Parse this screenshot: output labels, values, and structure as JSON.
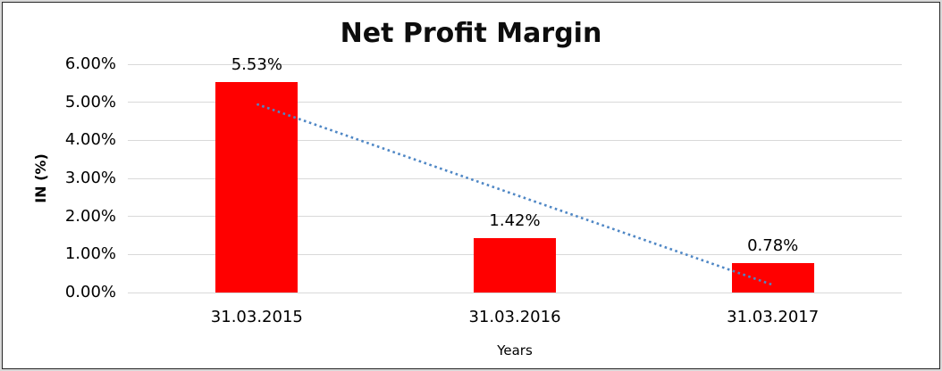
{
  "chart_data": {
    "type": "bar",
    "title": "Net Profit Margin",
    "xlabel": "Years",
    "ylabel": "IN (%)",
    "categories": [
      "31.03.2015",
      "31.03.2016",
      "31.03.2017"
    ],
    "values": [
      5.53,
      1.42,
      0.78
    ],
    "data_labels": [
      "5.53%",
      "1.42%",
      "0.78%"
    ],
    "y_ticks": [
      "6.00%",
      "5.00%",
      "4.00%",
      "3.00%",
      "2.00%",
      "1.00%",
      "0.00%"
    ],
    "ylim": [
      0,
      6
    ],
    "grid": true,
    "legend": "none",
    "bar_color": "#ff0000",
    "gridline_color": "#d9d9d9",
    "trendline": {
      "style": "dotted",
      "color": "#4f87c5",
      "start_value": 4.95,
      "end_value": 0.2
    }
  }
}
